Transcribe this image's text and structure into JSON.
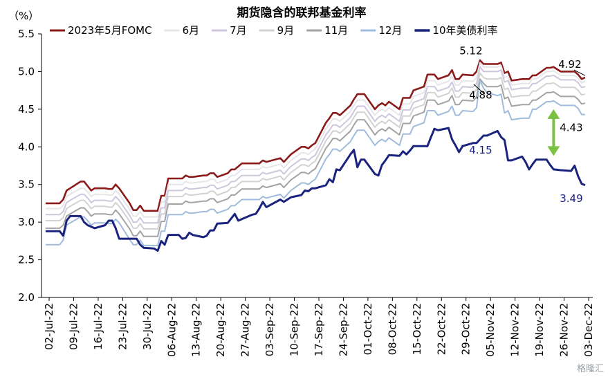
{
  "chart_data": {
    "type": "line",
    "title": "期货隐含的联邦基金利率",
    "ylabel": "（%）",
    "xlabel": "",
    "ylim": [
      2.0,
      5.5
    ],
    "yticks": [
      "2.0",
      "2.5",
      "3.0",
      "3.5",
      "4.0",
      "4.5",
      "5.0",
      "5.5"
    ],
    "xticks": [
      "02-Jul-22",
      "09-Jul-22",
      "16-Jul-22",
      "23-Jul-22",
      "30-Jul-22",
      "06-Aug-22",
      "13-Aug-22",
      "20-Aug-22",
      "27-Aug-22",
      "03-Sep-22",
      "10-Sep-22",
      "17-Sep-22",
      "24-Sep-22",
      "01-Oct-22",
      "08-Oct-22",
      "15-Oct-22",
      "22-Oct-22",
      "29-Oct-22",
      "05-Nov-22",
      "12-Nov-22",
      "19-Nov-22",
      "26-Nov-22",
      "03-Dec-22"
    ],
    "grid": false,
    "legend_position": "top",
    "colors": {
      "may": "#8b1a1a",
      "jun": "#e6e6ea",
      "jul": "#cfc6dd",
      "sep": "#d2d2d2",
      "nov": "#a3a3a3",
      "dec": "#9fbcdc",
      "t10": "#1a237e",
      "arrow": "#7cc242"
    },
    "x_dates": [
      "07-01",
      "07-05",
      "07-06",
      "07-07",
      "07-08",
      "07-11",
      "07-12",
      "07-13",
      "07-14",
      "07-15",
      "07-18",
      "07-19",
      "07-20",
      "07-21",
      "07-22",
      "07-25",
      "07-26",
      "07-27",
      "07-28",
      "07-29",
      "08-01",
      "08-02",
      "08-03",
      "08-04",
      "08-05",
      "08-08",
      "08-09",
      "08-10",
      "08-11",
      "08-12",
      "08-15",
      "08-16",
      "08-17",
      "08-18",
      "08-19",
      "08-22",
      "08-23",
      "08-24",
      "08-25",
      "08-26",
      "08-29",
      "08-30",
      "08-31",
      "09-01",
      "09-02",
      "09-06",
      "09-07",
      "09-08",
      "09-09",
      "09-12",
      "09-13",
      "09-14",
      "09-15",
      "09-16",
      "09-19",
      "09-20",
      "09-21",
      "09-22",
      "09-23",
      "09-26",
      "09-27",
      "09-28",
      "09-29",
      "09-30",
      "10-03",
      "10-04",
      "10-05",
      "10-06",
      "10-07",
      "10-10",
      "10-11",
      "10-12",
      "10-13",
      "10-14",
      "10-17",
      "10-18",
      "10-19",
      "10-20",
      "10-21",
      "10-24",
      "10-25",
      "10-26",
      "10-27",
      "10-28",
      "10-31",
      "11-01",
      "11-02",
      "11-03",
      "11-04",
      "11-07",
      "11-08",
      "11-09",
      "11-10",
      "11-11",
      "11-14",
      "11-15",
      "11-16",
      "11-17",
      "11-18",
      "11-21",
      "11-22",
      "11-23",
      "11-25",
      "11-28",
      "11-29",
      "11-30",
      "12-01",
      "12-02"
    ],
    "series": [
      {
        "key": "may",
        "name": "2023年5月FOMC",
        "width": 2.6,
        "values": [
          3.25,
          3.25,
          3.3,
          3.42,
          3.45,
          3.54,
          3.54,
          3.48,
          3.42,
          3.45,
          3.45,
          3.44,
          3.44,
          3.5,
          3.45,
          3.25,
          3.16,
          3.16,
          3.22,
          3.15,
          3.15,
          3.15,
          3.35,
          3.35,
          3.58,
          3.58,
          3.58,
          3.62,
          3.6,
          3.6,
          3.62,
          3.62,
          3.65,
          3.65,
          3.6,
          3.65,
          3.7,
          3.7,
          3.74,
          3.78,
          3.78,
          3.78,
          3.78,
          3.82,
          3.8,
          3.85,
          3.8,
          3.85,
          3.9,
          4.0,
          4.0,
          3.98,
          4.02,
          4.05,
          4.32,
          4.38,
          4.45,
          4.45,
          4.42,
          4.55,
          4.63,
          4.7,
          4.7,
          4.7,
          4.5,
          4.55,
          4.58,
          4.55,
          4.6,
          4.5,
          4.65,
          4.65,
          4.65,
          4.75,
          4.8,
          4.96,
          4.96,
          4.96,
          4.9,
          4.95,
          5.02,
          4.9,
          4.9,
          4.96,
          4.95,
          5.0,
          5.15,
          5.1,
          5.1,
          5.1,
          5.12,
          4.98,
          5.0,
          4.88,
          4.9,
          4.9,
          4.9,
          4.95,
          4.95,
          5.05,
          5.05,
          5.06,
          5.0,
          5.0,
          5.0,
          4.96,
          4.9,
          4.92
        ]
      },
      {
        "key": "jun",
        "name": "6月",
        "width": 2.0,
        "values": [
          3.18,
          3.18,
          3.22,
          3.34,
          3.37,
          3.45,
          3.45,
          3.4,
          3.34,
          3.37,
          3.37,
          3.36,
          3.36,
          3.42,
          3.37,
          3.17,
          3.08,
          3.08,
          3.14,
          3.07,
          3.07,
          3.07,
          3.27,
          3.27,
          3.5,
          3.5,
          3.5,
          3.54,
          3.52,
          3.52,
          3.54,
          3.54,
          3.57,
          3.57,
          3.52,
          3.57,
          3.62,
          3.62,
          3.66,
          3.7,
          3.7,
          3.7,
          3.7,
          3.74,
          3.72,
          3.77,
          3.72,
          3.77,
          3.82,
          3.92,
          3.92,
          3.9,
          3.94,
          3.97,
          4.24,
          4.3,
          4.37,
          4.37,
          4.34,
          4.47,
          4.55,
          4.62,
          4.62,
          4.62,
          4.42,
          4.47,
          4.5,
          4.47,
          4.52,
          4.42,
          4.57,
          4.57,
          4.57,
          4.67,
          4.72,
          4.88,
          4.88,
          4.88,
          4.82,
          4.87,
          4.94,
          4.82,
          4.82,
          4.88,
          4.87,
          4.92,
          5.12,
          5.06,
          5.06,
          5.06,
          5.08,
          4.92,
          4.94,
          4.82,
          4.84,
          4.84,
          4.84,
          4.9,
          4.9,
          5.0,
          5.0,
          5.01,
          4.95,
          4.95,
          4.95,
          4.91,
          4.85,
          4.87
        ]
      },
      {
        "key": "jul",
        "name": "7月",
        "width": 2.0,
        "values": [
          3.1,
          3.1,
          3.14,
          3.26,
          3.29,
          3.37,
          3.37,
          3.32,
          3.26,
          3.29,
          3.29,
          3.28,
          3.28,
          3.34,
          3.29,
          3.09,
          3.0,
          3.0,
          3.06,
          2.99,
          2.99,
          2.99,
          3.19,
          3.19,
          3.42,
          3.42,
          3.42,
          3.46,
          3.44,
          3.44,
          3.46,
          3.46,
          3.49,
          3.49,
          3.44,
          3.49,
          3.54,
          3.54,
          3.58,
          3.62,
          3.62,
          3.62,
          3.62,
          3.66,
          3.64,
          3.69,
          3.64,
          3.69,
          3.74,
          3.84,
          3.84,
          3.82,
          3.86,
          3.89,
          4.16,
          4.22,
          4.29,
          4.29,
          4.26,
          4.39,
          4.47,
          4.54,
          4.54,
          4.54,
          4.34,
          4.39,
          4.42,
          4.39,
          4.44,
          4.34,
          4.49,
          4.49,
          4.49,
          4.59,
          4.64,
          4.8,
          4.8,
          4.8,
          4.74,
          4.79,
          4.86,
          4.74,
          4.74,
          4.8,
          4.79,
          4.84,
          5.06,
          5.0,
          5.0,
          5.0,
          5.02,
          4.86,
          4.88,
          4.76,
          4.78,
          4.78,
          4.78,
          4.84,
          4.84,
          4.94,
          4.94,
          4.95,
          4.89,
          4.89,
          4.89,
          4.85,
          4.79,
          4.8
        ]
      },
      {
        "key": "sep",
        "name": "9月",
        "width": 2.0,
        "values": [
          3.02,
          3.02,
          3.06,
          3.18,
          3.21,
          3.29,
          3.29,
          3.24,
          3.18,
          3.21,
          3.21,
          3.2,
          3.2,
          3.26,
          3.21,
          3.01,
          2.92,
          2.92,
          2.98,
          2.91,
          2.91,
          2.91,
          3.11,
          3.11,
          3.34,
          3.34,
          3.34,
          3.38,
          3.36,
          3.36,
          3.38,
          3.38,
          3.41,
          3.41,
          3.36,
          3.41,
          3.46,
          3.46,
          3.5,
          3.54,
          3.54,
          3.54,
          3.54,
          3.58,
          3.56,
          3.61,
          3.56,
          3.61,
          3.66,
          3.76,
          3.76,
          3.74,
          3.78,
          3.81,
          4.08,
          4.14,
          4.21,
          4.21,
          4.18,
          4.31,
          4.39,
          4.46,
          4.46,
          4.46,
          4.26,
          4.31,
          4.34,
          4.31,
          4.36,
          4.26,
          4.41,
          4.41,
          4.41,
          4.51,
          4.56,
          4.72,
          4.72,
          4.72,
          4.66,
          4.71,
          4.78,
          4.66,
          4.66,
          4.72,
          4.71,
          4.76,
          4.98,
          4.92,
          4.9,
          4.9,
          4.92,
          4.76,
          4.78,
          4.66,
          4.68,
          4.68,
          4.68,
          4.74,
          4.74,
          4.84,
          4.84,
          4.85,
          4.79,
          4.79,
          4.79,
          4.75,
          4.69,
          4.7
        ]
      },
      {
        "key": "nov",
        "name": "11月",
        "width": 2.0,
        "values": [
          2.92,
          2.92,
          2.96,
          3.08,
          3.11,
          3.19,
          3.19,
          3.14,
          3.08,
          3.11,
          3.11,
          3.1,
          3.1,
          3.16,
          3.11,
          2.91,
          2.82,
          2.82,
          2.88,
          2.81,
          2.81,
          2.81,
          3.01,
          3.01,
          3.24,
          3.24,
          3.24,
          3.28,
          3.26,
          3.26,
          3.28,
          3.28,
          3.31,
          3.31,
          3.26,
          3.31,
          3.36,
          3.36,
          3.4,
          3.44,
          3.44,
          3.44,
          3.44,
          3.48,
          3.46,
          3.51,
          3.46,
          3.51,
          3.56,
          3.66,
          3.66,
          3.64,
          3.68,
          3.71,
          3.98,
          4.04,
          4.11,
          4.11,
          4.08,
          4.21,
          4.29,
          4.36,
          4.36,
          4.36,
          4.16,
          4.21,
          4.24,
          4.21,
          4.26,
          4.16,
          4.31,
          4.31,
          4.31,
          4.41,
          4.46,
          4.62,
          4.62,
          4.62,
          4.56,
          4.61,
          4.68,
          4.56,
          4.56,
          4.62,
          4.61,
          4.66,
          4.9,
          4.84,
          4.8,
          4.8,
          4.82,
          4.64,
          4.66,
          4.54,
          4.56,
          4.56,
          4.56,
          4.62,
          4.62,
          4.72,
          4.72,
          4.73,
          4.67,
          4.67,
          4.67,
          4.63,
          4.57,
          4.58
        ]
      },
      {
        "key": "dec",
        "name": "12月",
        "width": 2.0,
        "values": [
          2.7,
          2.7,
          2.76,
          2.96,
          2.99,
          3.07,
          3.07,
          3.02,
          2.96,
          2.99,
          2.99,
          2.98,
          2.98,
          3.04,
          2.99,
          2.77,
          2.7,
          2.7,
          2.76,
          2.69,
          2.69,
          2.69,
          2.88,
          2.88,
          3.1,
          3.1,
          3.1,
          3.14,
          3.12,
          3.12,
          3.14,
          3.14,
          3.17,
          3.17,
          3.12,
          3.17,
          3.22,
          3.22,
          3.26,
          3.3,
          3.3,
          3.3,
          3.3,
          3.34,
          3.32,
          3.37,
          3.32,
          3.37,
          3.42,
          3.52,
          3.52,
          3.5,
          3.54,
          3.57,
          3.84,
          3.9,
          3.97,
          3.97,
          3.94,
          4.07,
          4.15,
          4.22,
          4.22,
          4.22,
          4.02,
          4.07,
          4.1,
          4.07,
          4.12,
          4.02,
          4.17,
          4.17,
          4.17,
          4.27,
          4.32,
          4.48,
          4.48,
          4.48,
          4.42,
          4.47,
          4.54,
          4.42,
          4.42,
          4.48,
          4.47,
          4.52,
          4.88,
          4.78,
          4.72,
          4.68,
          4.7,
          4.45,
          4.48,
          4.36,
          4.38,
          4.38,
          4.38,
          4.5,
          4.5,
          4.6,
          4.6,
          4.61,
          4.55,
          4.55,
          4.55,
          4.51,
          4.43,
          4.43
        ]
      },
      {
        "key": "t10",
        "name": "10年美债利率",
        "width": 3.0,
        "values": [
          2.88,
          2.88,
          2.82,
          3.02,
          3.08,
          3.08,
          3.0,
          2.96,
          2.94,
          2.92,
          2.96,
          3.02,
          3.02,
          2.92,
          2.78,
          2.78,
          2.78,
          2.78,
          2.7,
          2.66,
          2.65,
          2.62,
          2.75,
          2.7,
          2.83,
          2.83,
          2.78,
          2.79,
          2.86,
          2.83,
          2.8,
          2.82,
          2.89,
          2.89,
          2.98,
          2.99,
          3.05,
          3.11,
          3.02,
          3.04,
          3.1,
          3.11,
          3.18,
          3.27,
          3.2,
          3.3,
          3.27,
          3.3,
          3.33,
          3.36,
          3.42,
          3.41,
          3.45,
          3.45,
          3.49,
          3.57,
          3.53,
          3.7,
          3.69,
          3.9,
          3.96,
          3.73,
          3.83,
          3.83,
          3.64,
          3.62,
          3.76,
          3.82,
          3.89,
          3.88,
          3.94,
          3.9,
          3.95,
          4.01,
          4.01,
          4.01,
          4.13,
          4.24,
          4.22,
          4.25,
          4.1,
          4.02,
          3.93,
          4.01,
          4.05,
          4.05,
          4.1,
          4.15,
          4.15,
          4.21,
          4.13,
          4.09,
          3.82,
          3.82,
          3.87,
          3.8,
          3.7,
          3.77,
          3.83,
          3.83,
          3.76,
          3.7,
          3.69,
          3.68,
          3.75,
          3.61,
          3.51,
          3.49
        ]
      }
    ],
    "annotations": [
      {
        "text": "5.12",
        "date": "11-01",
        "value": 5.12,
        "anchor": "above"
      },
      {
        "text": "4.92",
        "date": "12-02",
        "value": 4.92,
        "anchor": "above-left"
      },
      {
        "text": "4.88",
        "date": "11-01",
        "value": 4.88,
        "anchor": "below"
      },
      {
        "text": "4.43",
        "date": "12-02",
        "value": 4.43,
        "anchor": "below-left"
      },
      {
        "text": "4.15",
        "date": "11-01",
        "value": 4.15,
        "anchor": "below"
      },
      {
        "text": "3.49",
        "date": "12-02",
        "value": 3.49,
        "anchor": "below-left"
      }
    ],
    "arrow": {
      "date": "11-23",
      "from": 4.5,
      "to": 3.88
    }
  },
  "watermark": "格隆汇"
}
